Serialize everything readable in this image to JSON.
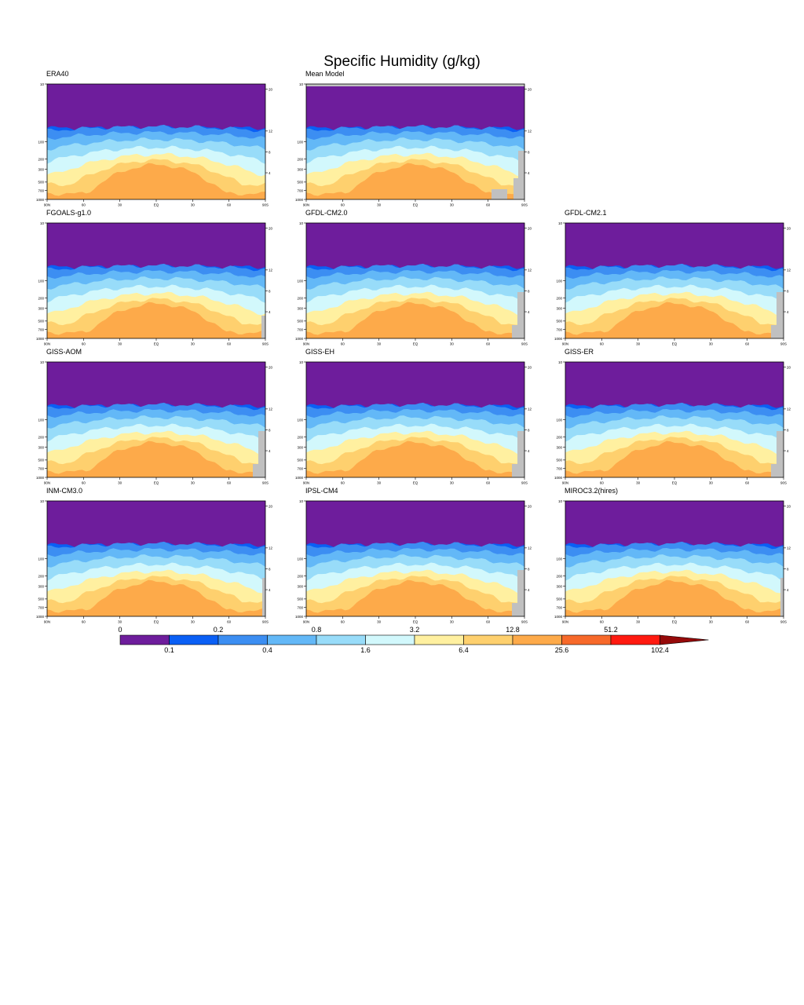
{
  "title": "Specific Humidity (g/kg)",
  "chart_data": {
    "type": "contour",
    "title": "Specific Humidity (g/kg)",
    "units": "g/kg",
    "x_tick_labels": [
      "90N",
      "60",
      "30",
      "EQ",
      "30",
      "60",
      "90S"
    ],
    "y_tick_labels_pressure": [
      "10",
      "100",
      "200",
      "300",
      "500",
      "700",
      "1000"
    ],
    "y_tick_values_pressure": [
      10,
      100,
      200,
      300,
      500,
      700,
      1000
    ],
    "y_tick_labels_height": [
      "20",
      "12",
      "8",
      "4"
    ],
    "y_tick_values_height": [
      20,
      12,
      8,
      4
    ],
    "panels": [
      {
        "name": "ERA40",
        "mask": "none"
      },
      {
        "name": "Mean Model",
        "mask": "mean"
      },
      null,
      {
        "name": "FGOALS-g1.0",
        "mask": "fgoals"
      },
      {
        "name": "GFDL-CM2.0",
        "mask": "std"
      },
      {
        "name": "GFDL-CM2.1",
        "mask": "std"
      },
      {
        "name": "GISS-AOM",
        "mask": "std"
      },
      {
        "name": "GISS-EH",
        "mask": "std"
      },
      {
        "name": "GISS-ER",
        "mask": "std"
      },
      {
        "name": "INM-CM3.0",
        "mask": "small"
      },
      {
        "name": "IPSL-CM4",
        "mask": "std"
      },
      {
        "name": "MIROC3.2(hires)",
        "mask": "small"
      }
    ],
    "colorbar": {
      "levels": [
        0,
        0.1,
        0.2,
        0.4,
        0.8,
        1.6,
        3.2,
        6.4,
        12.8,
        25.6,
        51.2,
        102.4
      ],
      "top_labels": [
        "0",
        "0.2",
        "0.8",
        "3.2",
        "12.8",
        "51.2"
      ],
      "bottom_labels": [
        "0.1",
        "0.4",
        "1.6",
        "6.4",
        "25.6",
        "102.4"
      ],
      "colors": [
        "#6e1d9c",
        "#0a5ff5",
        "#3c8ef2",
        "#63b8f7",
        "#98dcf9",
        "#d2f8fc",
        "#fff0a0",
        "#fed06e",
        "#fdaa4a",
        "#f7692a",
        "#ff1a10",
        "#960a0a"
      ]
    },
    "missing_color": "#c0c0c0"
  }
}
